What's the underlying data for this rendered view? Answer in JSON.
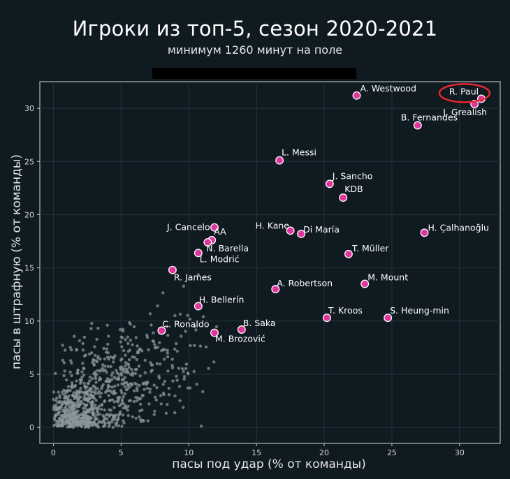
{
  "chart_data": {
    "type": "scatter",
    "title": "Игроки из топ-5, сезон 2020-2021",
    "subtitle": "минимум 1260 минут на поле",
    "xlabel": "пасы под удар (% от команды)",
    "ylabel": "пасы в штрафную (% от команды)",
    "xlim": [
      -1,
      33
    ],
    "ylim": [
      -1.5,
      32.5
    ],
    "xticks": [
      0,
      5,
      10,
      15,
      20,
      25,
      30
    ],
    "yticks": [
      0,
      5,
      10,
      15,
      20,
      25,
      30
    ],
    "grid": true,
    "highlight_color": "#e0359e",
    "background_color": "#0f1a21",
    "highlighted_series": [
      {
        "name": "A. Westwood",
        "x": 22.4,
        "y": 31.2
      },
      {
        "name": "R. Paul",
        "x": 31.6,
        "y": 30.9
      },
      {
        "name": "J. Grealish",
        "x": 31.1,
        "y": 30.4
      },
      {
        "name": "B. Fernandes",
        "x": 26.9,
        "y": 28.4
      },
      {
        "name": "L. Messi",
        "x": 16.7,
        "y": 25.1
      },
      {
        "name": "J. Sancho",
        "x": 20.4,
        "y": 22.9
      },
      {
        "name": "KDB",
        "x": 21.4,
        "y": 21.6
      },
      {
        "name": "J. Cancelo",
        "x": 11.9,
        "y": 18.8
      },
      {
        "name": "AA",
        "x": 11.7,
        "y": 17.6
      },
      {
        "name": "H. Kane",
        "x": 17.5,
        "y": 18.5
      },
      {
        "name": "Di María",
        "x": 18.3,
        "y": 18.2
      },
      {
        "name": "H. Çalhanoğlu",
        "x": 27.4,
        "y": 18.3
      },
      {
        "name": "N. Barella",
        "x": 11.4,
        "y": 17.4
      },
      {
        "name": "L. Modrić",
        "x": 10.7,
        "y": 16.4
      },
      {
        "name": "T. Müller",
        "x": 21.8,
        "y": 16.3
      },
      {
        "name": "R. James",
        "x": 8.8,
        "y": 14.8
      },
      {
        "name": "A. Robertson",
        "x": 16.4,
        "y": 13.0
      },
      {
        "name": "M. Mount",
        "x": 23.0,
        "y": 13.5
      },
      {
        "name": "H. Bellerín",
        "x": 10.7,
        "y": 11.4
      },
      {
        "name": "T. Kroos",
        "x": 20.2,
        "y": 10.3
      },
      {
        "name": "S. Heung-min",
        "x": 24.7,
        "y": 10.3
      },
      {
        "name": "C. Ronaldo",
        "x": 8.0,
        "y": 9.1
      },
      {
        "name": "B. Saka",
        "x": 13.9,
        "y": 9.2
      },
      {
        "name": "M. Brozović",
        "x": 11.9,
        "y": 8.9
      }
    ],
    "circled_player": "R. Paul"
  }
}
